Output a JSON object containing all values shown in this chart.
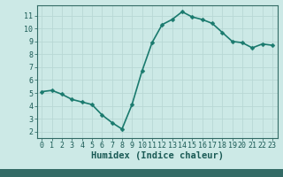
{
  "x": [
    0,
    1,
    2,
    3,
    4,
    5,
    6,
    7,
    8,
    9,
    10,
    11,
    12,
    13,
    14,
    15,
    16,
    17,
    18,
    19,
    20,
    21,
    22,
    23
  ],
  "y": [
    5.1,
    5.2,
    4.9,
    4.5,
    4.3,
    4.1,
    3.3,
    2.7,
    2.2,
    4.1,
    6.7,
    8.9,
    10.3,
    10.7,
    11.3,
    10.9,
    10.7,
    10.4,
    9.7,
    9.0,
    8.9,
    8.5,
    8.8,
    8.7
  ],
  "line_color": "#1a7a6e",
  "marker": "D",
  "marker_size": 2.5,
  "xlabel": "Humidex (Indice chaleur)",
  "xlim": [
    -0.5,
    23.5
  ],
  "ylim": [
    1.5,
    11.8
  ],
  "yticks": [
    2,
    3,
    4,
    5,
    6,
    7,
    8,
    9,
    10,
    11
  ],
  "xticks": [
    0,
    1,
    2,
    3,
    4,
    5,
    6,
    7,
    8,
    9,
    10,
    11,
    12,
    13,
    14,
    15,
    16,
    17,
    18,
    19,
    20,
    21,
    22,
    23
  ],
  "bg_color": "#cce9e6",
  "grid_color": "#b8d8d5",
  "spine_color": "#336b66",
  "tick_color": "#1a5a55",
  "xlabel_fontsize": 7.5,
  "tick_fontsize": 6,
  "line_width": 1.2,
  "bottom_bar_color": "#336b66"
}
